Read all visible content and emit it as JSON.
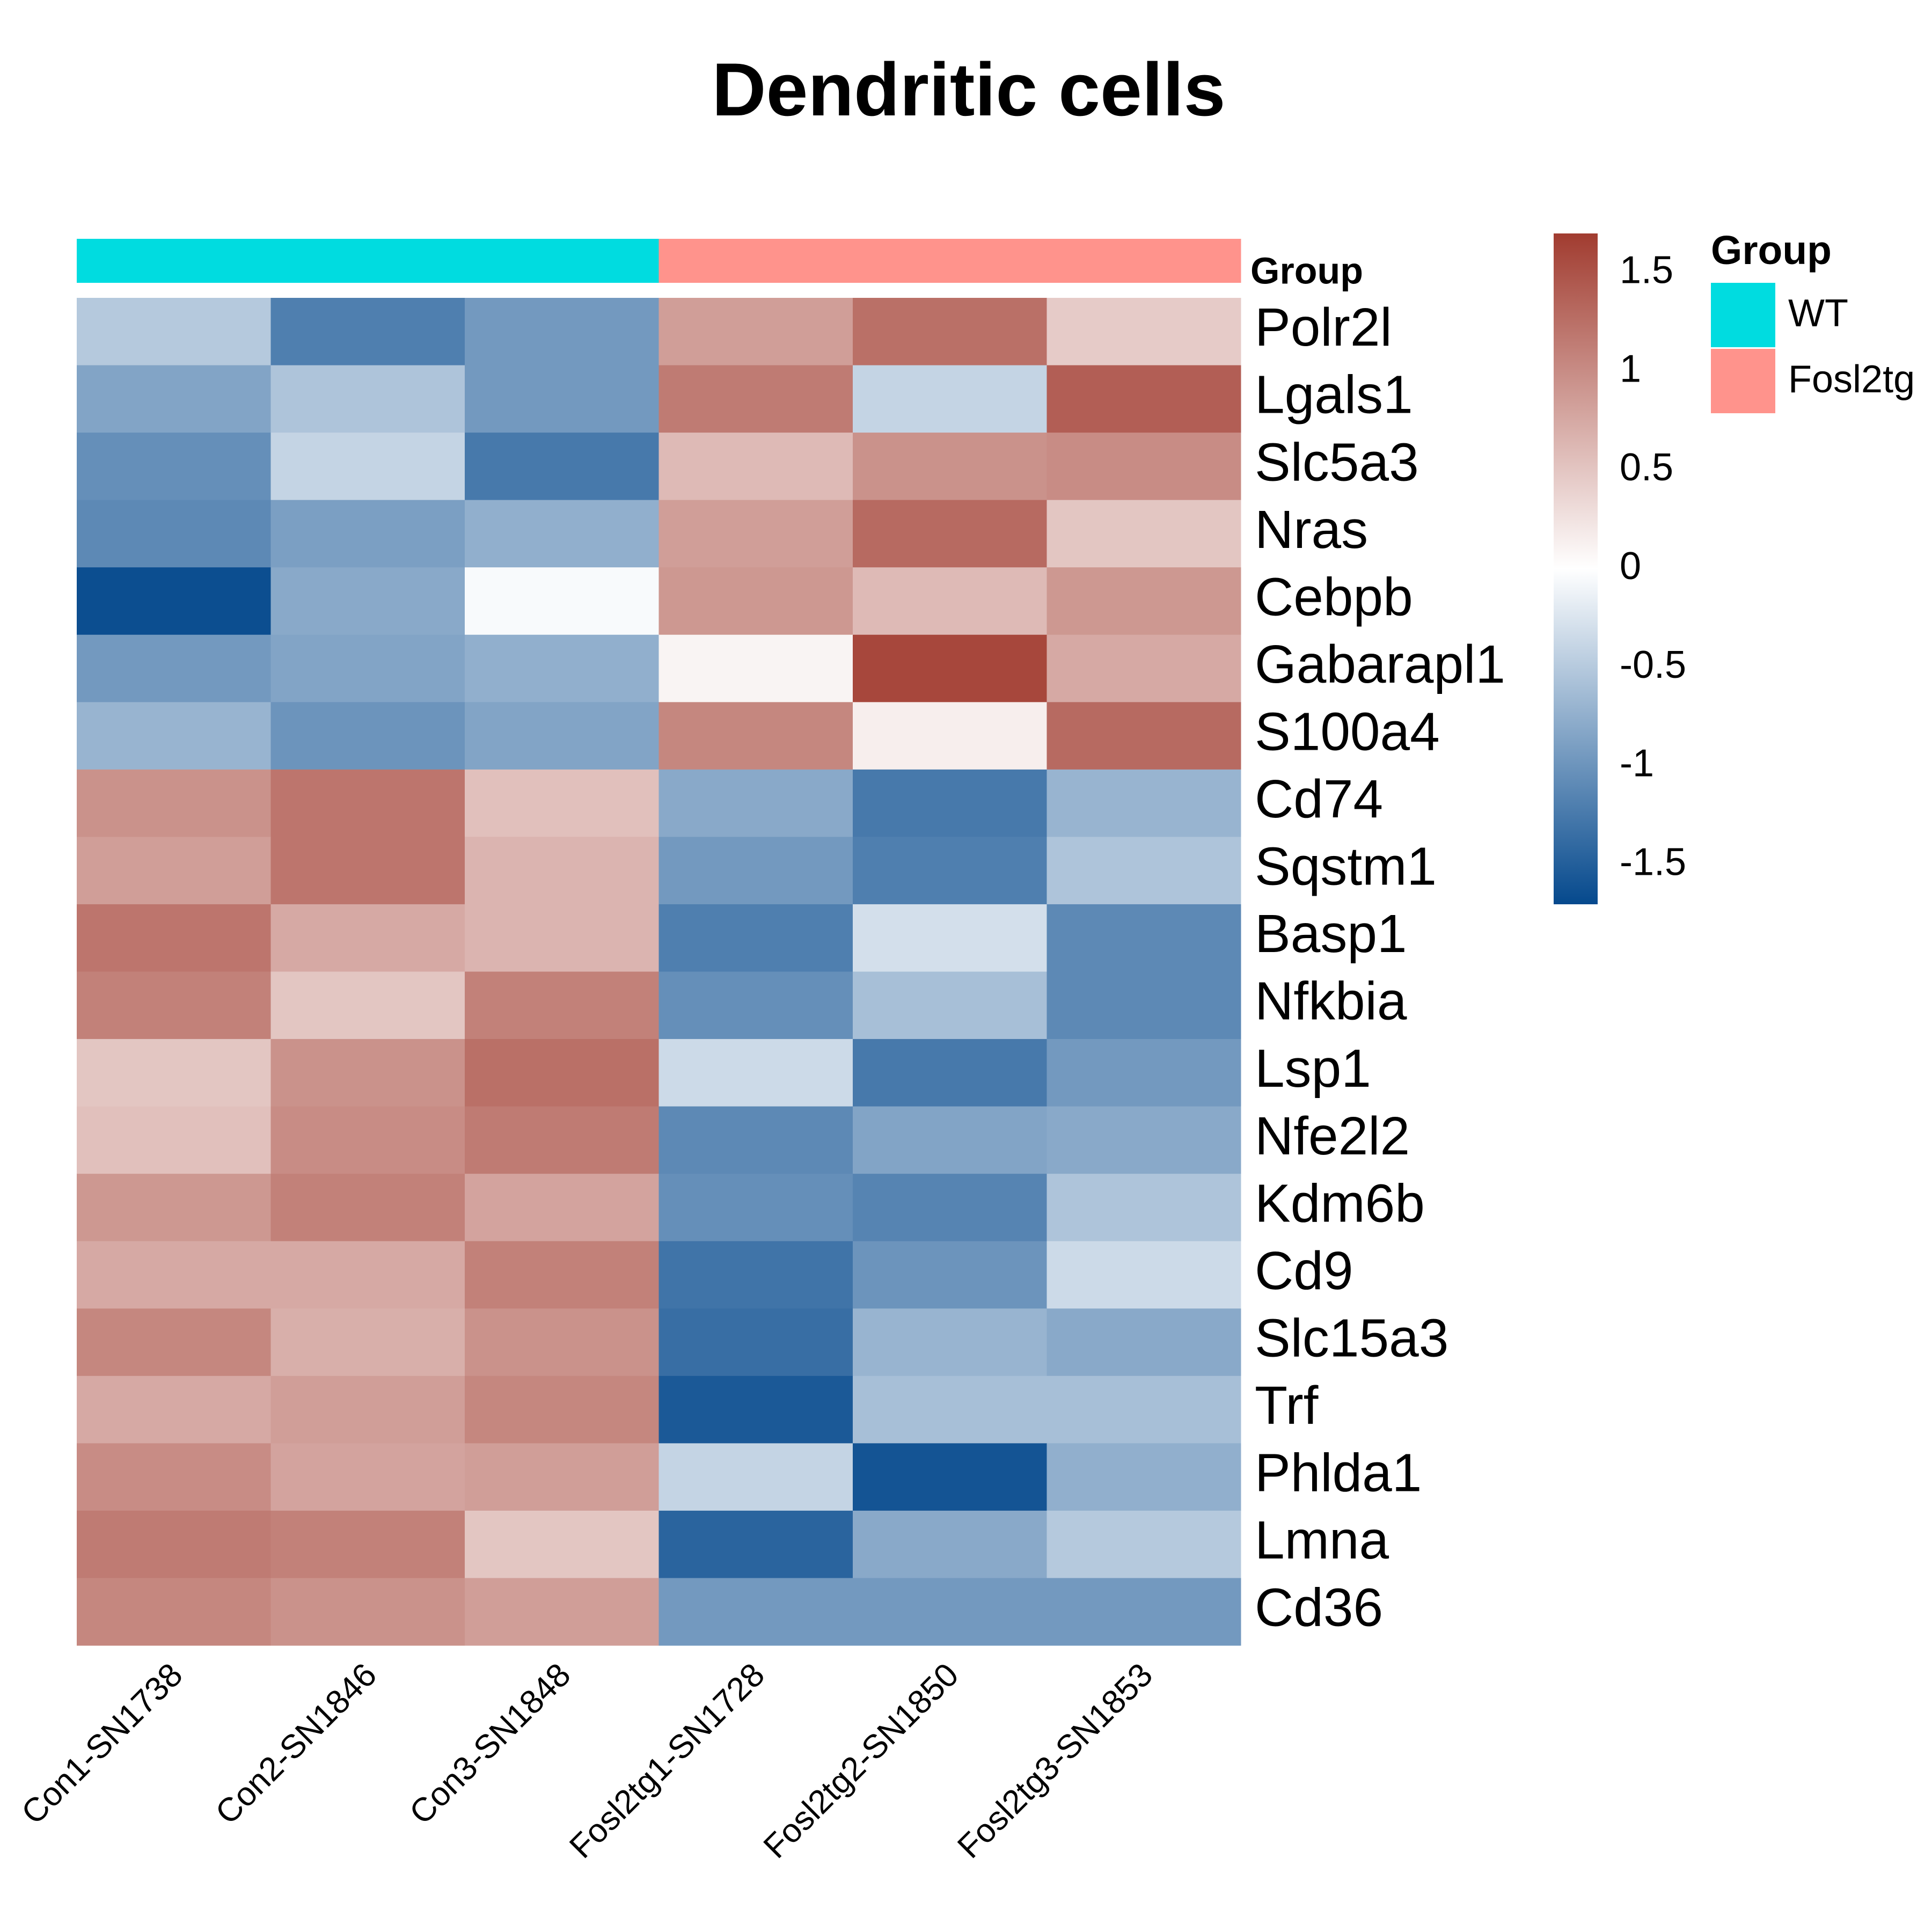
{
  "chart_data": {
    "type": "heatmap",
    "title": "Dendritic cells",
    "columns": [
      "Con1-SN1738",
      "Con2-SN1846",
      "Con3-SN1848",
      "Fosl2tg1-SN1728",
      "Fosl2tg2-SN1850",
      "Fosl2tg3-SN1853"
    ],
    "rows": [
      "Polr2l",
      "Lgals1",
      "Slc5a3",
      "Nras",
      "Cebpb",
      "Gabarapl1",
      "S100a4",
      "Cd74",
      "Sqstm1",
      "Basp1",
      "Nfkbia",
      "Lsp1",
      "Nfe2l2",
      "Kdm6b",
      "Cd9",
      "Slc15a3",
      "Trf",
      "Phlda1",
      "Lmna",
      "Cd36"
    ],
    "values": [
      [
        -0.5,
        -1.2,
        -0.95,
        0.85,
        1.25,
        0.45
      ],
      [
        -0.85,
        -0.55,
        -0.95,
        1.15,
        -0.4,
        1.4
      ],
      [
        -1.05,
        -0.4,
        -1.25,
        0.6,
        0.95,
        1.0
      ],
      [
        -1.1,
        -0.9,
        -0.75,
        0.85,
        1.3,
        0.5
      ],
      [
        -1.65,
        -0.8,
        -0.05,
        0.9,
        0.6,
        0.9
      ],
      [
        -0.95,
        -0.85,
        -0.75,
        0.1,
        1.6,
        0.75
      ],
      [
        -0.7,
        -1.0,
        -0.85,
        1.05,
        0.15,
        1.3
      ],
      [
        0.95,
        1.2,
        0.55,
        -0.8,
        -1.25,
        -0.7
      ],
      [
        0.85,
        1.2,
        0.65,
        -0.95,
        -1.2,
        -0.55
      ],
      [
        1.2,
        0.75,
        0.65,
        -1.2,
        -0.3,
        -1.1
      ],
      [
        1.1,
        0.5,
        1.1,
        -1.05,
        -0.6,
        -1.1
      ],
      [
        0.5,
        0.95,
        1.25,
        -0.35,
        -1.25,
        -0.95
      ],
      [
        0.55,
        1.0,
        1.15,
        -1.1,
        -0.85,
        -0.8
      ],
      [
        0.9,
        1.1,
        0.8,
        -1.05,
        -1.15,
        -0.55
      ],
      [
        0.75,
        0.75,
        1.1,
        -1.3,
        -1.0,
        -0.35
      ],
      [
        1.05,
        0.7,
        0.95,
        -1.35,
        -0.7,
        -0.8
      ],
      [
        0.75,
        0.85,
        1.05,
        -1.55,
        -0.6,
        -0.6
      ],
      [
        1.0,
        0.8,
        0.85,
        -0.4,
        -1.6,
        -0.75
      ],
      [
        1.15,
        1.1,
        0.5,
        -1.45,
        -0.8,
        -0.5
      ],
      [
        1.05,
        0.95,
        0.85,
        -0.95,
        -0.95,
        -0.95
      ]
    ],
    "color_scale": {
      "min": -1.7,
      "max": 1.7,
      "low": "#05498d",
      "mid": "#ffffff",
      "high": "#a13c30"
    },
    "colorbar_ticks": [
      1.5,
      1,
      0.5,
      0,
      -0.5,
      -1,
      -1.5
    ],
    "colorbar_tick_labels": [
      "1.5",
      "1",
      "0.5",
      "0",
      "-0.5",
      "-1",
      "-1.5"
    ],
    "annotation": {
      "label": "Group",
      "column_groups": [
        "WT",
        "WT",
        "WT",
        "Fosl2tg",
        "Fosl2tg",
        "Fosl2tg"
      ],
      "legend_title": "Group",
      "levels": [
        {
          "name": "WT",
          "color": "#00dce0"
        },
        {
          "name": "Fosl2tg",
          "color": "#ff938c"
        }
      ]
    }
  }
}
